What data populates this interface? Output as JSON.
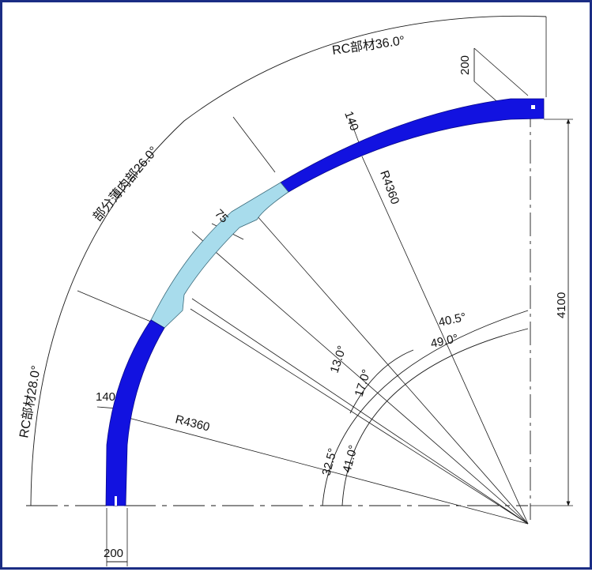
{
  "colors": {
    "frame": "#1b2d84",
    "rc_member": "#1212e0",
    "thin_member": "#a8dcec",
    "line": "#1a1a1a"
  },
  "labels": {
    "rc_top": "RC部材36.0°",
    "partial_thin": "部分薄肉部26.0°",
    "rc_bottom": "RC部材28.0°",
    "dim_200_top": "200",
    "dim_140_top": "140",
    "radius_upper": "R4360",
    "dim_75": "75",
    "dim_4100": "4100",
    "angle_405": "40.5°",
    "angle_490": "49.0°",
    "angle_130": "13.0°",
    "angle_170": "17.0°",
    "dim_140_left": "140",
    "radius_lower": "R4360",
    "angle_325": "32.5°",
    "angle_410": "41.0°",
    "dim_200_bottom": "200"
  }
}
